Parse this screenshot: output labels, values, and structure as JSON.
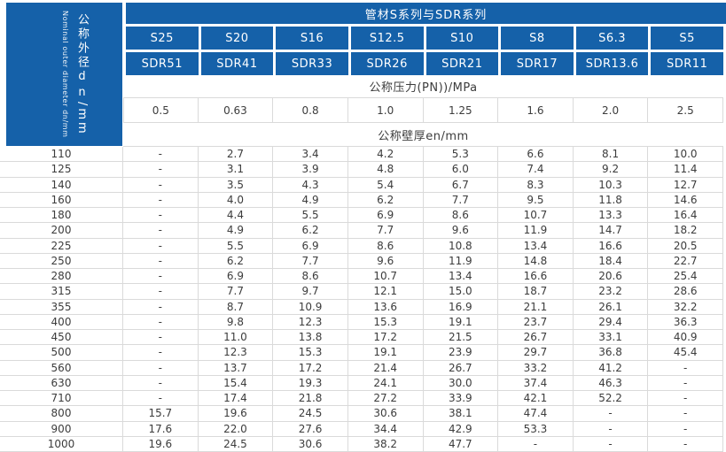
{
  "colors": {
    "header_blue": "#1561a9",
    "border": "#dadada",
    "text": "#3c3c3c"
  },
  "sidebar": {
    "label_cjk": "公称外径",
    "label_dn": "dn",
    "label_unit": "/mm",
    "label_en": "Nominal outer diameter dn/mm"
  },
  "header": {
    "title": "管材S系列与SDR系列",
    "s_series": [
      "S25",
      "S20",
      "S16",
      "S12.5",
      "S10",
      "S8",
      "S6.3",
      "S5"
    ],
    "sdr_series": [
      "SDR51",
      "SDR41",
      "SDR33",
      "SDR26",
      "SDR21",
      "SDR17",
      "SDR13.6",
      "SDR11"
    ],
    "pressure_label": "公称压力(PN))/MPa",
    "pressure_values": [
      "0.5",
      "0.63",
      "0.8",
      "1.0",
      "1.25",
      "1.6",
      "2.0",
      "2.5"
    ],
    "thickness_label": "公称壁厚en/mm"
  },
  "table": {
    "rows": [
      {
        "dn": "110",
        "values": [
          "-",
          "2.7",
          "3.4",
          "4.2",
          "5.3",
          "6.6",
          "8.1",
          "10.0"
        ]
      },
      {
        "dn": "125",
        "values": [
          "-",
          "3.1",
          "3.9",
          "4.8",
          "6.0",
          "7.4",
          "9.2",
          "11.4"
        ]
      },
      {
        "dn": "140",
        "values": [
          "-",
          "3.5",
          "4.3",
          "5.4",
          "6.7",
          "8.3",
          "10.3",
          "12.7"
        ]
      },
      {
        "dn": "160",
        "values": [
          "-",
          "4.0",
          "4.9",
          "6.2",
          "7.7",
          "9.5",
          "11.8",
          "14.6"
        ]
      },
      {
        "dn": "180",
        "values": [
          "-",
          "4.4",
          "5.5",
          "6.9",
          "8.6",
          "10.7",
          "13.3",
          "16.4"
        ]
      },
      {
        "dn": "200",
        "values": [
          "-",
          "4.9",
          "6.2",
          "7.7",
          "9.6",
          "11.9",
          "14.7",
          "18.2"
        ]
      },
      {
        "dn": "225",
        "values": [
          "-",
          "5.5",
          "6.9",
          "8.6",
          "10.8",
          "13.4",
          "16.6",
          "20.5"
        ]
      },
      {
        "dn": "250",
        "values": [
          "-",
          "6.2",
          "7.7",
          "9.6",
          "11.9",
          "14.8",
          "18.4",
          "22.7"
        ]
      },
      {
        "dn": "280",
        "values": [
          "-",
          "6.9",
          "8.6",
          "10.7",
          "13.4",
          "16.6",
          "20.6",
          "25.4"
        ]
      },
      {
        "dn": "315",
        "values": [
          "-",
          "7.7",
          "9.7",
          "12.1",
          "15.0",
          "18.7",
          "23.2",
          "28.6"
        ]
      },
      {
        "dn": "355",
        "values": [
          "-",
          "8.7",
          "10.9",
          "13.6",
          "16.9",
          "21.1",
          "26.1",
          "32.2"
        ]
      },
      {
        "dn": "400",
        "values": [
          "-",
          "9.8",
          "12.3",
          "15.3",
          "19.1",
          "23.7",
          "29.4",
          "36.3"
        ]
      },
      {
        "dn": "450",
        "values": [
          "-",
          "11.0",
          "13.8",
          "17.2",
          "21.5",
          "26.7",
          "33.1",
          "40.9"
        ]
      },
      {
        "dn": "500",
        "values": [
          "-",
          "12.3",
          "15.3",
          "19.1",
          "23.9",
          "29.7",
          "36.8",
          "45.4"
        ]
      },
      {
        "dn": "560",
        "values": [
          "-",
          "13.7",
          "17.2",
          "21.4",
          "26.7",
          "33.2",
          "41.2",
          "-"
        ]
      },
      {
        "dn": "630",
        "values": [
          "-",
          "15.4",
          "19.3",
          "24.1",
          "30.0",
          "37.4",
          "46.3",
          "-"
        ]
      },
      {
        "dn": "710",
        "values": [
          "-",
          "17.4",
          "21.8",
          "27.2",
          "33.9",
          "42.1",
          "52.2",
          "-"
        ]
      },
      {
        "dn": "800",
        "values": [
          "15.7",
          "19.6",
          "24.5",
          "30.6",
          "38.1",
          "47.4",
          "-",
          "-"
        ]
      },
      {
        "dn": "900",
        "values": [
          "17.6",
          "22.0",
          "27.6",
          "34.4",
          "42.9",
          "53.3",
          "-",
          "-"
        ]
      },
      {
        "dn": "1000",
        "values": [
          "19.6",
          "24.5",
          "30.6",
          "38.2",
          "47.7",
          "-",
          "-",
          "-"
        ]
      }
    ]
  }
}
